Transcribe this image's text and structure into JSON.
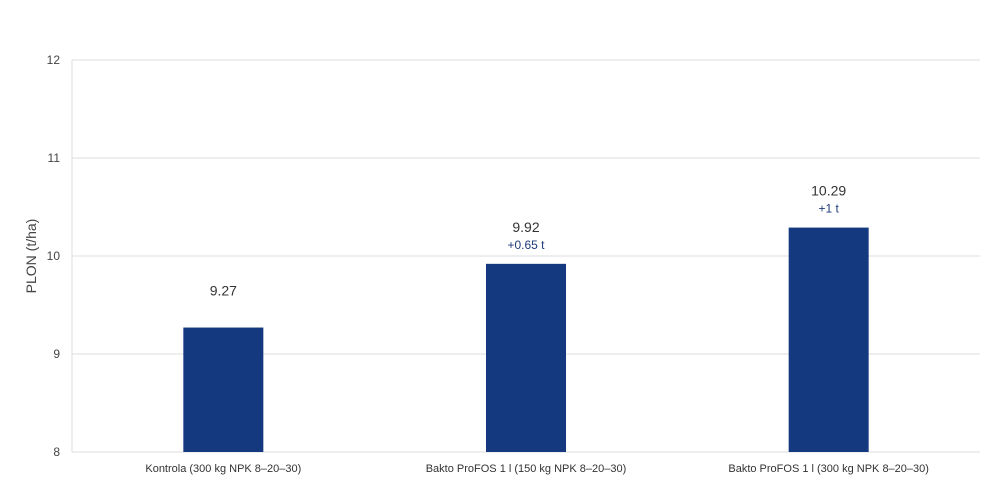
{
  "chart_data": {
    "type": "bar",
    "categories": [
      "Kontrola (300 kg NPK 8–20–30)",
      "Bakto ProFOS 1 l (150 kg NPK 8–20–30)",
      "Bakto ProFOS 1 l (300 kg NPK 8–20–30)"
    ],
    "values": [
      9.27,
      9.92,
      10.29
    ],
    "value_labels": [
      "9.27",
      "9.92",
      "10.29"
    ],
    "delta_labels": [
      "",
      "+0.65 t",
      "+1 t"
    ],
    "title": "",
    "xlabel": "",
    "ylabel": "PLON (t/ha)",
    "ylim": [
      8,
      12
    ],
    "yticks": [
      8,
      9,
      10,
      11,
      12
    ],
    "grid": true,
    "legend": "none",
    "colors": {
      "bar": "#15397f",
      "grid": "#dddddd",
      "delta": "#1e3a7a"
    }
  }
}
